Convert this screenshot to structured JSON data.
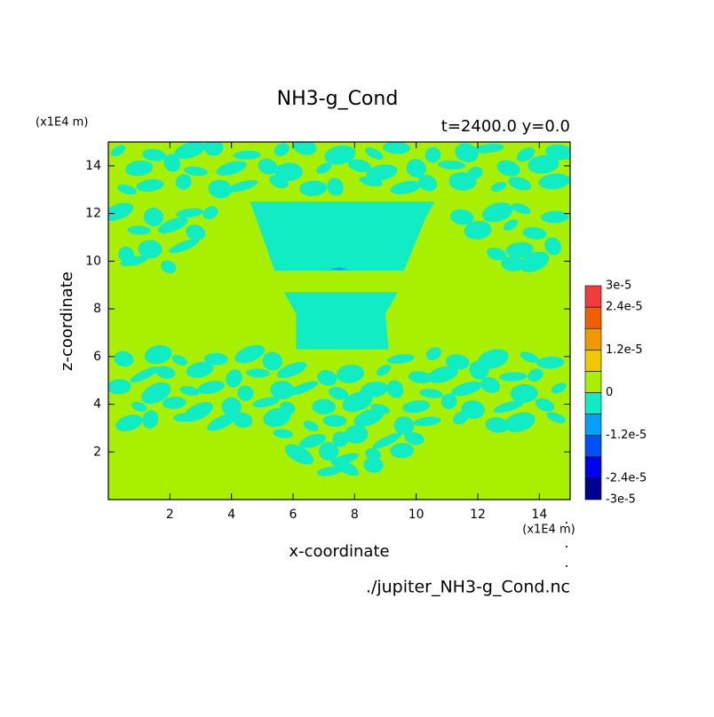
{
  "chart_data": {
    "type": "contour",
    "title": "NH3-g_Cond",
    "subtitle": "t=2400.0 y=0.0",
    "xlabel": "x-coordinate",
    "ylabel": "z-coordinate",
    "x_unit": "(x1E4 m)",
    "y_unit": "(x1E4 m)",
    "source": "./jupiter_NH3-g_Cond.nc",
    "xlim": [
      0,
      15
    ],
    "ylim": [
      0,
      15
    ],
    "xticks": [
      2,
      4,
      6,
      8,
      10,
      12,
      14
    ],
    "yticks": [
      2,
      4,
      6,
      8,
      10,
      12,
      14
    ],
    "levels": [
      -3e-05,
      -2.4e-05,
      -1.8e-05,
      -1.2e-05,
      -6e-06,
      0,
      6e-06,
      1.2e-05,
      1.8e-05,
      2.4e-05,
      3e-05
    ],
    "colors": [
      "#000090",
      "#0000f0",
      "#0050ff",
      "#00a0ff",
      "#10ecc4",
      "#a8f000",
      "#f0c800",
      "#f09a00",
      "#f06000",
      "#f03c3c"
    ],
    "colorbar_ticks": [
      {
        "value": 3e-05,
        "label": "3e-5"
      },
      {
        "value": 2.4e-05,
        "label": "2.4e-5"
      },
      {
        "value": 1.2e-05,
        "label": "1.2e-5"
      },
      0,
      {
        "value": -1.2e-05,
        "label": "-1.2e-5"
      },
      {
        "value": -2.4e-05,
        "label": "-2.4e-5"
      },
      {
        "value": -3e-05,
        "label": "-3e-5"
      }
    ],
    "background_value": 3e-06,
    "regions": [
      {
        "value": -3e-06,
        "polygon": [
          [
            4.6,
            12.5
          ],
          [
            10.6,
            12.5
          ],
          [
            10.3,
            11.8
          ],
          [
            9.6,
            9.6
          ],
          [
            5.4,
            9.6
          ],
          [
            4.8,
            11.8
          ]
        ]
      },
      {
        "value": -3e-06,
        "polygon": [
          [
            5.7,
            8.7
          ],
          [
            9.4,
            8.7
          ],
          [
            9.0,
            7.8
          ],
          [
            9.1,
            6.3
          ],
          [
            6.1,
            6.3
          ],
          [
            6.1,
            7.8
          ]
        ]
      },
      {
        "value": -9e-06,
        "polygon": [
          [
            7.2,
            9.66
          ],
          [
            7.5,
            9.74
          ],
          [
            7.8,
            9.66
          ],
          [
            7.5,
            9.62
          ]
        ]
      }
    ],
    "noise": {
      "value": -3e-06,
      "rows": [
        {
          "z": 14.6,
          "x": [
            0.5,
            1.5,
            2.5,
            3.5,
            4.5,
            5.5,
            6.5,
            7.5,
            8.5,
            9.5,
            10.5,
            11.5,
            12.5,
            13.5,
            14.5
          ]
        },
        {
          "z": 13.9,
          "x": [
            1.0,
            2.0,
            3.0,
            4.0,
            5.0,
            6.0,
            7.0,
            8.0,
            9.0,
            10.0,
            11.0,
            12.0,
            13.0,
            14.0
          ]
        },
        {
          "z": 13.2,
          "x": [
            0.5,
            1.5,
            2.5,
            3.5,
            4.5,
            5.5,
            6.5,
            7.5,
            8.5,
            9.5,
            10.5,
            11.5,
            12.5,
            13.5,
            14.5
          ]
        },
        {
          "z": 12.0,
          "x": [
            0.5,
            1.5,
            2.5,
            3.5,
            11.5,
            12.5,
            13.5,
            14.5
          ]
        },
        {
          "z": 11.3,
          "x": [
            1.0,
            2.0,
            3.0,
            12.0,
            13.0,
            14.0
          ]
        },
        {
          "z": 10.5,
          "x": [
            0.5,
            1.5,
            2.5,
            12.5,
            13.5,
            14.5
          ]
        },
        {
          "z": 9.9,
          "x": [
            1.0,
            2.0,
            13.0,
            14.0
          ]
        },
        {
          "z": 5.9,
          "x": [
            0.5,
            1.5,
            2.5,
            3.5,
            4.5,
            5.5,
            9.5,
            10.5,
            11.5,
            12.5,
            13.5,
            14.5
          ]
        },
        {
          "z": 5.3,
          "x": [
            1.0,
            2.0,
            3.0,
            4.0,
            5.0,
            6.0,
            7.0,
            8.0,
            9.0,
            10.0,
            11.0,
            12.0,
            13.0,
            14.0
          ]
        },
        {
          "z": 4.6,
          "x": [
            0.5,
            1.5,
            2.5,
            3.5,
            4.5,
            5.5,
            6.5,
            7.5,
            8.5,
            9.5,
            10.5,
            11.5,
            12.5,
            13.5,
            14.5
          ]
        },
        {
          "z": 3.9,
          "x": [
            1.0,
            2.0,
            3.0,
            4.0,
            5.0,
            6.0,
            7.0,
            8.0,
            9.0,
            10.0,
            11.0,
            12.0,
            13.0,
            14.0
          ]
        },
        {
          "z": 3.3,
          "x": [
            0.5,
            1.5,
            2.5,
            3.5,
            4.5,
            5.5,
            6.5,
            7.5,
            8.5,
            9.5,
            10.5,
            11.5,
            12.5,
            13.5,
            14.5
          ]
        },
        {
          "z": 2.6,
          "x": [
            5.8,
            6.6,
            7.4,
            8.2,
            9.0,
            9.8
          ]
        },
        {
          "z": 1.9,
          "x": [
            6.2,
            7.0,
            7.8,
            8.6,
            9.4
          ]
        },
        {
          "z": 1.3,
          "x": [
            7.0,
            7.8,
            8.6
          ]
        }
      ]
    }
  }
}
